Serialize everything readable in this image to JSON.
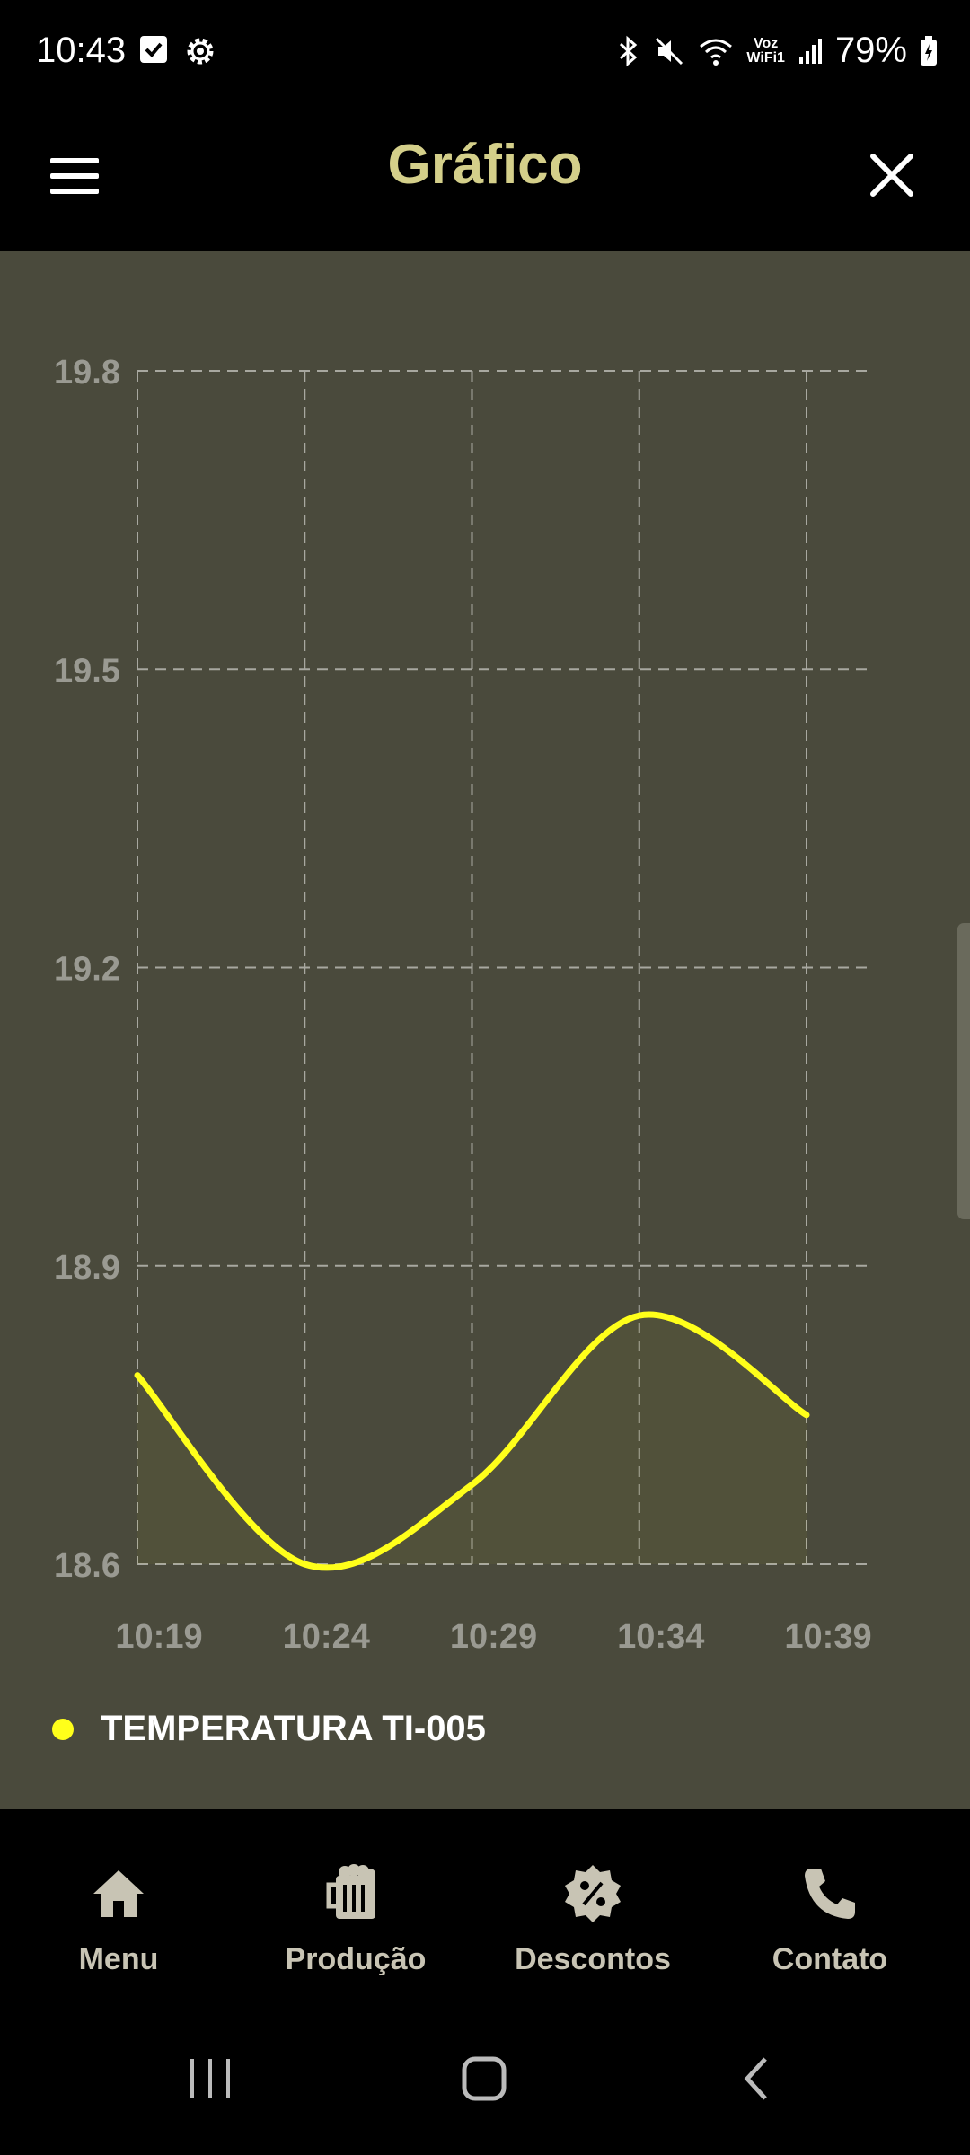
{
  "status_bar": {
    "time": "10:43",
    "battery": "79%",
    "wifi_label_top": "Voz",
    "wifi_label_bottom": "WiFi1",
    "icons": [
      "checkbox-icon",
      "settings-gear-icon",
      "bluetooth-icon",
      "mute-icon",
      "wifi-calling-icon",
      "signal-icon",
      "battery-icon"
    ]
  },
  "app_bar": {
    "title": "Gráfico",
    "menu_icon": "hamburger-menu-icon",
    "close_icon": "close-icon"
  },
  "chart_data": {
    "type": "line",
    "x": [
      "10:19",
      "10:24",
      "10:29",
      "10:34",
      "10:39"
    ],
    "y_ticks": [
      "19.8",
      "19.5",
      "19.2",
      "18.9",
      "18.6"
    ],
    "ylim": [
      18.6,
      19.8
    ],
    "grid": true,
    "legend_placement": "bottom-left",
    "series": [
      {
        "name": "TEMPERATURA TI-005",
        "color": "#ffff1a",
        "values": [
          18.79,
          18.6,
          18.68,
          18.85,
          18.75
        ]
      }
    ]
  },
  "bottom_nav": {
    "items": [
      {
        "label": "Menu",
        "icon": "home-icon"
      },
      {
        "label": "Produção",
        "icon": "beer-mug-icon"
      },
      {
        "label": "Descontos",
        "icon": "discount-badge-icon"
      },
      {
        "label": "Contato",
        "icon": "phone-icon"
      }
    ]
  },
  "colors": {
    "title": "#d4cf8a",
    "chart_bg": "#4a4a3c",
    "grid": "#a8a8a0",
    "axis_text": "#9a9a92",
    "nav_text": "#c8c4b4"
  }
}
